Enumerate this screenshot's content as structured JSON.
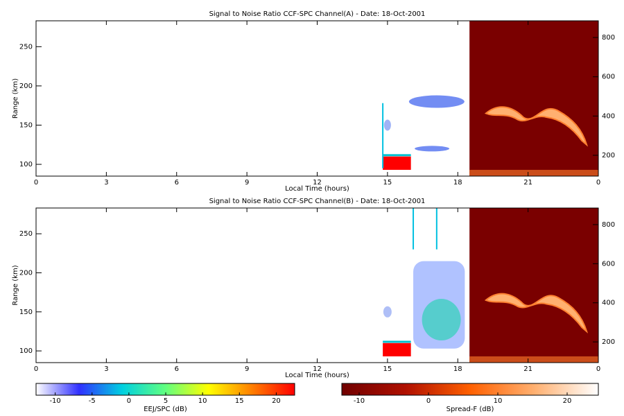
{
  "chart_data": [
    {
      "type": "heatmap",
      "title": "Signal to Noise Ratio CCF-SPC Channel(A) - Date: 18-Oct-2001",
      "xlabel": "Local Time (hours)",
      "ylabel": "Range (km)",
      "xlim": [
        0,
        24
      ],
      "xticks": [
        0,
        3,
        6,
        9,
        12,
        15,
        18,
        21,
        {
          "value": 24,
          "label": "0"
        }
      ],
      "ylim": [
        85,
        283
      ],
      "yticks": [
        100,
        150,
        200,
        250
      ],
      "y2lim": [
        94,
        885
      ],
      "y2ticks": [
        200,
        400,
        600,
        800
      ]
    },
    {
      "type": "heatmap",
      "title": "Signal to Noise Ratio CCF-SPC Channel(B) - Date: 18-Oct-2001",
      "xlabel": "Local Time (hours)",
      "ylabel": "Range (km)",
      "xlim": [
        0,
        24
      ],
      "xticks": [
        0,
        3,
        6,
        9,
        12,
        15,
        18,
        21,
        {
          "value": 24,
          "label": "0"
        }
      ],
      "ylim": [
        85,
        283
      ],
      "yticks": [
        100,
        150,
        200,
        250
      ],
      "y2lim": [
        94,
        885
      ],
      "y2ticks": [
        200,
        400,
        600,
        800
      ]
    },
    {
      "type": "colorbar",
      "xlabel": "EEJ/SPC (dB)",
      "xlim": [
        -12.6,
        22.5
      ],
      "xticks": [
        -10,
        -5,
        0,
        5,
        10,
        15,
        20
      ],
      "colors": [
        "#ffffff",
        "#3030ff",
        "#00d0e0",
        "#60ff80",
        "#ffff00",
        "#ff8000",
        "#ff0000"
      ]
    },
    {
      "type": "colorbar",
      "xlabel": "Spread-F (dB)",
      "xlim": [
        -12.5,
        24.5
      ],
      "xticks": [
        -10,
        0,
        10,
        20
      ],
      "colors": [
        "#700000",
        "#b01000",
        "#ff6000",
        "#ffb070",
        "#ffffff"
      ]
    }
  ]
}
